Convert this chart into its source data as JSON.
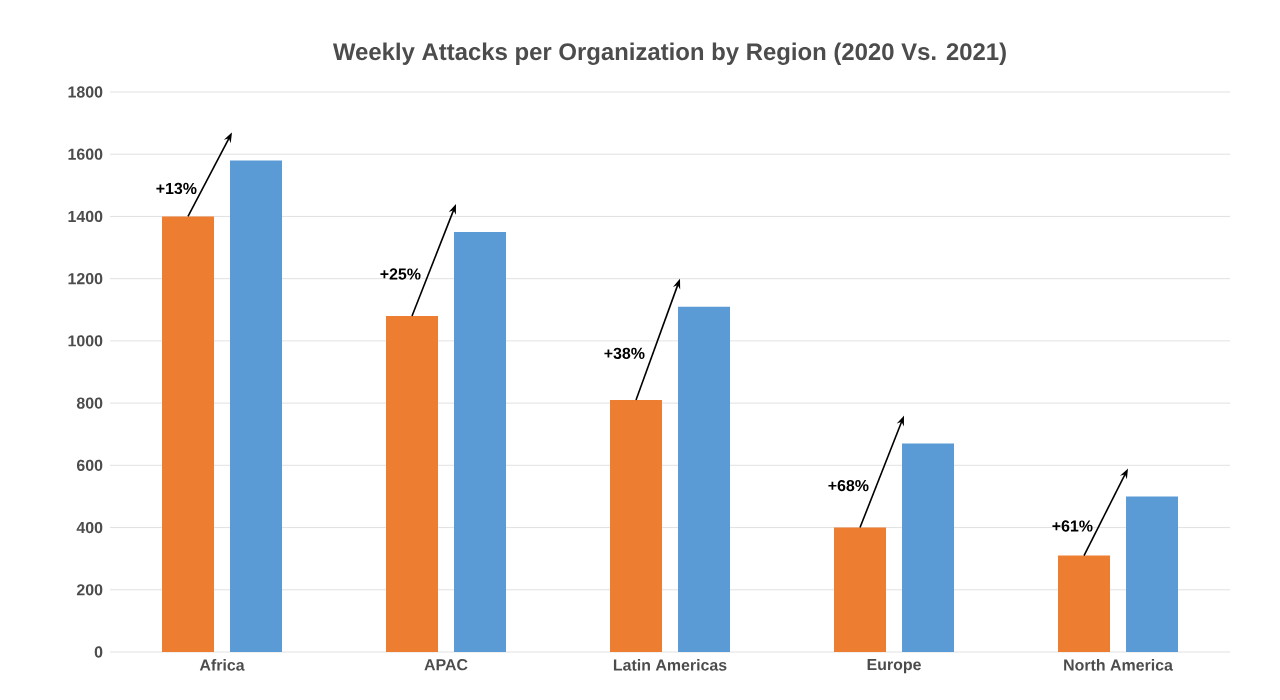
{
  "chart_data": {
    "type": "bar",
    "title": "Weekly Attacks per Organization by Region (2020 Vs. 2021)",
    "categories": [
      "Africa",
      "APAC",
      "Latin Americas",
      "Europe",
      "North America"
    ],
    "series": [
      {
        "color": "#ed7d31",
        "values": [
          1400,
          1080,
          810,
          400,
          310
        ]
      },
      {
        "color": "#5b9bd5",
        "values": [
          1580,
          1350,
          1110,
          670,
          500
        ]
      }
    ],
    "ylim": [
      0,
      1800
    ],
    "yticks": [
      0,
      200,
      400,
      600,
      800,
      1000,
      1200,
      1400,
      1600,
      1800
    ],
    "grid": "y",
    "annotations": [
      "+13%",
      "+25%",
      "+38%",
      "+68%",
      "+61%"
    ]
  }
}
